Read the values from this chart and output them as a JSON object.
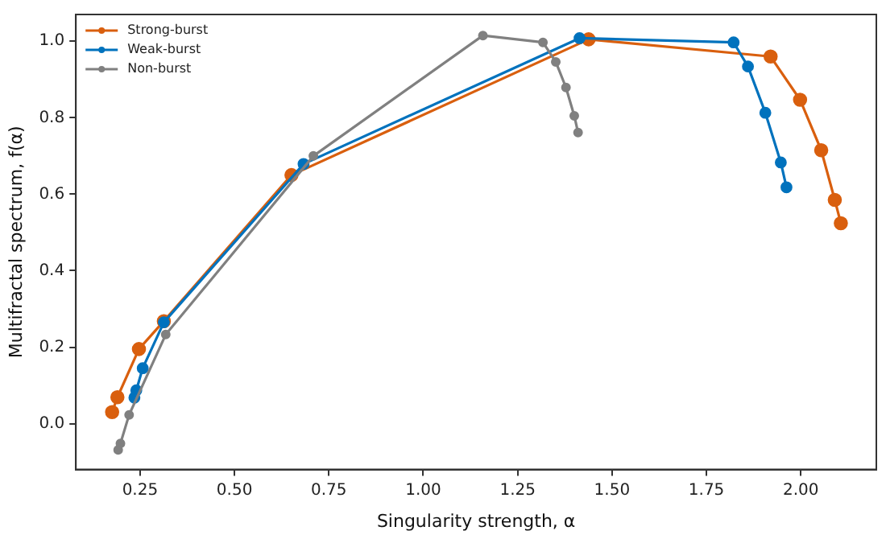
{
  "chart_data": {
    "type": "line",
    "xlabel": "Singularity strength, α",
    "ylabel": "Multifractal spectrum, f(α)",
    "xlim": [
      0.08,
      2.2
    ],
    "xticks": [
      {
        "value": 0.25,
        "label": "0.25"
      },
      {
        "value": 0.5,
        "label": "0.50"
      },
      {
        "value": 0.75,
        "label": "0.75"
      },
      {
        "value": 1,
        "label": "1.00"
      },
      {
        "value": 1.25,
        "label": "1.25"
      },
      {
        "value": 1.5,
        "label": "1.50"
      },
      {
        "value": 1.75,
        "label": "1.75"
      },
      {
        "value": 2,
        "label": "2.00"
      }
    ],
    "ylim": [
      -0.12,
      1.07
    ],
    "yticks": [
      {
        "value": 0,
        "label": "0.0"
      },
      {
        "value": 0.2,
        "label": "0.2"
      },
      {
        "value": 0.4,
        "label": "0.4"
      },
      {
        "value": 0.6,
        "label": "0.6"
      },
      {
        "value": 0.8,
        "label": "0.8"
      },
      {
        "value": 1,
        "label": "1.0"
      }
    ],
    "grid": false,
    "legend": "top left",
    "marker": "circle",
    "line_style": "solid",
    "series": [
      {
        "name": "Strong-burst",
        "color": "#d95f0e",
        "x": [
          0.176,
          0.19,
          0.247,
          0.313,
          0.651,
          1.438,
          1.92,
          1.998,
          2.054,
          2.09,
          2.106
        ],
        "values": [
          0.03,
          0.069,
          0.195,
          0.268,
          0.65,
          1.005,
          0.96,
          0.847,
          0.715,
          0.585,
          0.524
        ]
      },
      {
        "name": "Weak-burst",
        "color": "#0072bd",
        "x": [
          0.235,
          0.24,
          0.257,
          0.313,
          0.683,
          1.414,
          1.822,
          1.86,
          1.906,
          1.947,
          1.962
        ],
        "values": [
          0.068,
          0.087,
          0.145,
          0.265,
          0.679,
          1.008,
          0.997,
          0.934,
          0.813,
          0.683,
          0.618
        ]
      },
      {
        "name": "Non-burst",
        "color": "#808080",
        "x": [
          0.192,
          0.198,
          0.221,
          0.318,
          0.709,
          1.158,
          1.317,
          1.351,
          1.378,
          1.4,
          1.41
        ],
        "values": [
          -0.069,
          -0.052,
          0.023,
          0.233,
          0.7,
          1.015,
          0.997,
          0.946,
          0.879,
          0.805,
          0.761
        ]
      }
    ]
  }
}
